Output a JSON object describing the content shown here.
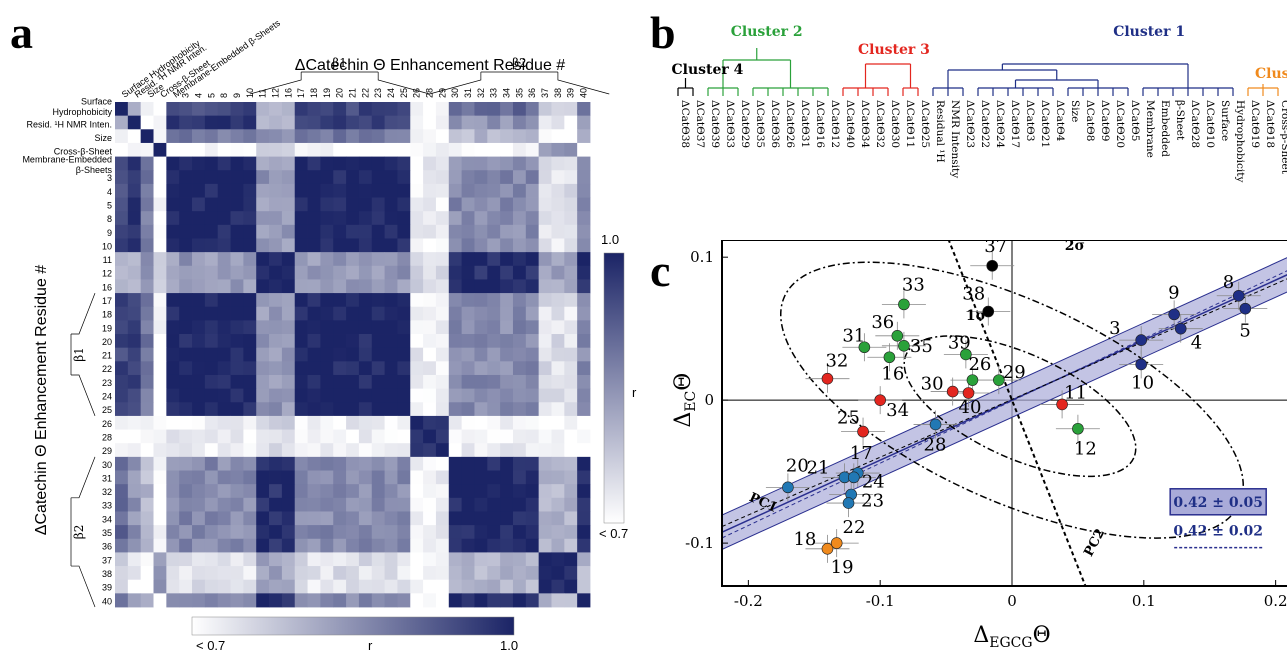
{
  "panels": {
    "a": {
      "letter": "a",
      "title": "ΔCatechin Θ Enhancement Residue #",
      "ylabel": "ΔCatechin Θ Enhancement Residue #",
      "beta1": "β1",
      "beta2": "β2",
      "row_labels": [
        "Surface Hydrophobicity",
        "Resid. ¹H NMR Inten.",
        "Size",
        "Cross-β-Sheet",
        "Membrane-Embedded β-Sheets",
        "3",
        "4",
        "5",
        "8",
        "9",
        "10",
        "11",
        "12",
        "16",
        "17",
        "18",
        "19",
        "20",
        "21",
        "22",
        "23",
        "24",
        "25",
        "26",
        "28",
        "29",
        "30",
        "31",
        "32",
        "33",
        "34",
        "35",
        "36",
        "37",
        "38",
        "39",
        "40"
      ],
      "col_labels": [
        "Surface Hydrophobicity",
        "Resid. ¹H NMR Inten.",
        "Size",
        "Cross-β-Sheet",
        "Membrane-Embedded β-Sheets",
        "3",
        "4",
        "5",
        "8",
        "9",
        "10",
        "11",
        "12",
        "16",
        "17",
        "18",
        "19",
        "20",
        "21",
        "22",
        "23",
        "24",
        "25",
        "26",
        "28",
        "29",
        "30",
        "31",
        "32",
        "33",
        "34",
        "35",
        "36",
        "37",
        "38",
        "39",
        "40"
      ],
      "left_labels": [
        "Surface",
        "Hydrophobicity",
        "Resid. ¹H NMR Inten.",
        "Size",
        "Cross-β-Sheet",
        "Membrane-Embedded",
        "β-Sheets"
      ],
      "colorbar_right": {
        "top": "1.0",
        "mid": "r",
        "bottom": "< 0.7"
      },
      "colorbar_bottom": {
        "left": "< 0.7",
        "mid": "r",
        "right": "1.0"
      },
      "colors": {
        "high": "#1b2466",
        "low": "#ffffff"
      }
    },
    "b": {
      "letter": "b",
      "clusters": [
        {
          "name": "Cluster 4",
          "color": "#000000"
        },
        {
          "name": "Cluster 2",
          "color": "#2aa13a"
        },
        {
          "name": "Cluster 3",
          "color": "#e3261f"
        },
        {
          "name": "Cluster 1",
          "color": "#1f2f86"
        },
        {
          "name": "Cluster",
          "color": "#f08a1d"
        }
      ],
      "leaves": [
        {
          "label": "ΔCatΘ38",
          "c": 0
        },
        {
          "label": "ΔCatΘ37",
          "c": 0
        },
        {
          "label": "ΔCatΘ39",
          "c": 1
        },
        {
          "label": "ΔCatΘ33",
          "c": 1
        },
        {
          "label": "ΔCatΘ29",
          "c": 1
        },
        {
          "label": "ΔCatΘ35",
          "c": 1
        },
        {
          "label": "ΔCatΘ36",
          "c": 1
        },
        {
          "label": "ΔCatΘ26",
          "c": 1
        },
        {
          "label": "ΔCatΘ31",
          "c": 1
        },
        {
          "label": "ΔCatΘ16",
          "c": 1
        },
        {
          "label": "ΔCatΘ12",
          "c": 1
        },
        {
          "label": "ΔCatΘ40",
          "c": 2
        },
        {
          "label": "ΔCatΘ34",
          "c": 2
        },
        {
          "label": "ΔCatΘ32",
          "c": 2
        },
        {
          "label": "ΔCatΘ30",
          "c": 2
        },
        {
          "label": "ΔCatΘ11",
          "c": 2
        },
        {
          "label": "ΔCatΘ25",
          "c": 2
        },
        {
          "label": "Residual ¹H",
          "c": 3
        },
        {
          "label": "NMR Intensity",
          "c": 3
        },
        {
          "label": "ΔCatΘ23",
          "c": 3
        },
        {
          "label": "ΔCatΘ22",
          "c": 3
        },
        {
          "label": "ΔCatΘ24",
          "c": 3
        },
        {
          "label": "ΔCatΘ17",
          "c": 3
        },
        {
          "label": "ΔCatΘ3",
          "c": 3
        },
        {
          "label": "ΔCatΘ21",
          "c": 3
        },
        {
          "label": "ΔCatΘ4",
          "c": 3
        },
        {
          "label": "Size",
          "c": 3
        },
        {
          "label": "ΔCatΘ8",
          "c": 3
        },
        {
          "label": "ΔCatΘ9",
          "c": 3
        },
        {
          "label": "ΔCatΘ20",
          "c": 3
        },
        {
          "label": "ΔCatΘ5",
          "c": 3
        },
        {
          "label": "Membrane",
          "c": 3
        },
        {
          "label": "Embedded",
          "c": 3
        },
        {
          "label": "β-Sheet",
          "c": 3
        },
        {
          "label": "ΔCatΘ28",
          "c": 3
        },
        {
          "label": "ΔCatΘ10",
          "c": 3
        },
        {
          "label": "Surface",
          "c": 3
        },
        {
          "label": "Hydrophobicity",
          "c": 3
        },
        {
          "label": "ΔCatΘ19",
          "c": 4
        },
        {
          "label": "ΔCatΘ18",
          "c": 4
        },
        {
          "label": "Cross-β-Sheet",
          "c": 4
        }
      ]
    },
    "c": {
      "letter": "c",
      "xlabel_main": "Δ",
      "xlabel_sub": "EGCG",
      "xlabel_tail": "Θ",
      "ylabel_main": "Δ",
      "ylabel_sub": "EC",
      "ylabel_tail": "Θ",
      "sigma1": "1σ",
      "sigma2": "2σ",
      "pc1": "PC1",
      "pc2": "PC2",
      "legend_box": "0.42 ± 0.05",
      "legend_line": "0.42 ± 0.02"
    }
  },
  "chart_data": [
    {
      "type": "heatmap",
      "title": "ΔCatechin Θ Enhancement Residue #",
      "ylabel": "ΔCatechin Θ Enhancement Residue #",
      "scale": {
        "min_label": "< 0.7",
        "max_label": "1.0",
        "variable": "r"
      },
      "groups": {
        "A": [
          "Surface Hydrophobicity"
        ],
        "B": [
          "Resid. ¹H NMR Inten."
        ],
        "C": [
          "Size"
        ],
        "D": [
          "Cross-β-Sheet"
        ],
        "E": [
          "Membrane-Embedded β-Sheets",
          "3",
          "4",
          "5",
          "8",
          "9",
          "10",
          "17",
          "18",
          "19",
          "20",
          "21",
          "22",
          "23",
          "24",
          "25"
        ],
        "F": [
          "11",
          "12",
          "16"
        ],
        "G": [
          "26",
          "28",
          "29"
        ],
        "H": [
          "30",
          "31",
          "32",
          "33",
          "34",
          "35",
          "36",
          "40"
        ],
        "I": [
          "37",
          "38",
          "39"
        ]
      },
      "group_correlation": {
        "A": {
          "A": 1.0,
          "B": 0.8,
          "C": 0.75,
          "D": 0.7,
          "E": 0.95,
          "F": 0.82,
          "G": 0.72,
          "H": 0.9,
          "I": 0.78
        },
        "B": {
          "A": 0.8,
          "B": 1.0,
          "C": 0.72,
          "D": 0.7,
          "E": 0.97,
          "F": 0.8,
          "G": 0.7,
          "H": 0.85,
          "I": 0.72
        },
        "C": {
          "A": 0.75,
          "B": 0.72,
          "C": 1.0,
          "D": 0.7,
          "E": 0.88,
          "F": 0.84,
          "G": 0.7,
          "H": 0.8,
          "I": 0.72
        },
        "D": {
          "A": 0.7,
          "B": 0.7,
          "C": 0.7,
          "D": 1.0,
          "E": 0.7,
          "F": 0.78,
          "G": 0.7,
          "H": 0.7,
          "I": 0.85
        },
        "E": {
          "A": 0.95,
          "B": 0.97,
          "C": 0.88,
          "D": 0.7,
          "E": 1.0,
          "F": 0.84,
          "G": 0.72,
          "H": 0.86,
          "I": 0.74
        },
        "F": {
          "A": 0.82,
          "B": 0.8,
          "C": 0.84,
          "D": 0.78,
          "E": 0.84,
          "F": 1.0,
          "G": 0.75,
          "H": 0.99,
          "I": 0.82
        },
        "G": {
          "A": 0.72,
          "B": 0.7,
          "C": 0.7,
          "D": 0.7,
          "E": 0.72,
          "F": 0.75,
          "G": 1.0,
          "H": 0.72,
          "I": 0.7
        },
        "H": {
          "A": 0.9,
          "B": 0.85,
          "C": 0.8,
          "D": 0.7,
          "E": 0.86,
          "F": 0.99,
          "G": 0.72,
          "H": 1.0,
          "I": 0.8
        },
        "I": {
          "A": 0.78,
          "B": 0.72,
          "C": 0.72,
          "D": 0.85,
          "E": 0.74,
          "F": 0.82,
          "G": 0.7,
          "H": 0.8,
          "I": 1.0
        }
      }
    },
    {
      "type": "scatter",
      "xlabel": "ΔEGCGΘ",
      "ylabel": "ΔECΘ",
      "xlim": [
        -0.22,
        0.22
      ],
      "ylim": [
        -0.13,
        0.14
      ],
      "xticks": [
        "-0.2",
        "-0.1",
        "0",
        "0.1",
        "0.2"
      ],
      "yticks": [
        "-0.1",
        "0",
        "0.1"
      ],
      "cluster_colors": {
        "1": "#1f2f86",
        "2": "#2aa13a",
        "3": "#e3261f",
        "4": "#000000",
        "5": "#f08a1d",
        "6": "#2178b4"
      },
      "points": [
        {
          "label": "37",
          "x": -0.015,
          "y": 0.094,
          "cluster": "4"
        },
        {
          "label": "38",
          "x": -0.018,
          "y": 0.062,
          "cluster": "4"
        },
        {
          "label": "33",
          "x": -0.082,
          "y": 0.067,
          "cluster": "2"
        },
        {
          "label": "36",
          "x": -0.087,
          "y": 0.045,
          "cluster": "2"
        },
        {
          "label": "35",
          "x": -0.082,
          "y": 0.038,
          "cluster": "2"
        },
        {
          "label": "31",
          "x": -0.112,
          "y": 0.037,
          "cluster": "2"
        },
        {
          "label": "16",
          "x": -0.093,
          "y": 0.03,
          "cluster": "2"
        },
        {
          "label": "39",
          "x": -0.035,
          "y": 0.032,
          "cluster": "2"
        },
        {
          "label": "26",
          "x": -0.03,
          "y": 0.014,
          "cluster": "2"
        },
        {
          "label": "29",
          "x": -0.01,
          "y": 0.014,
          "cluster": "2"
        },
        {
          "label": "12",
          "x": 0.05,
          "y": -0.02,
          "cluster": "2"
        },
        {
          "label": "32",
          "x": -0.14,
          "y": 0.015,
          "cluster": "3"
        },
        {
          "label": "30",
          "x": -0.045,
          "y": 0.006,
          "cluster": "3"
        },
        {
          "label": "40",
          "x": -0.033,
          "y": 0.005,
          "cluster": "3"
        },
        {
          "label": "34",
          "x": -0.1,
          "y": 0.0,
          "cluster": "3"
        },
        {
          "label": "25",
          "x": -0.113,
          "y": -0.022,
          "cluster": "3"
        },
        {
          "label": "11",
          "x": 0.038,
          "y": -0.003,
          "cluster": "3"
        },
        {
          "label": "9",
          "x": 0.123,
          "y": 0.06,
          "cluster": "1"
        },
        {
          "label": "8",
          "x": 0.172,
          "y": 0.073,
          "cluster": "1"
        },
        {
          "label": "5",
          "x": 0.177,
          "y": 0.064,
          "cluster": "1"
        },
        {
          "label": "3",
          "x": 0.098,
          "y": 0.042,
          "cluster": "1"
        },
        {
          "label": "4",
          "x": 0.128,
          "y": 0.05,
          "cluster": "1"
        },
        {
          "label": "10",
          "x": 0.098,
          "y": 0.025,
          "cluster": "1"
        },
        {
          "label": "28",
          "x": -0.058,
          "y": -0.017,
          "cluster": "6"
        },
        {
          "label": "20",
          "x": -0.17,
          "y": -0.061,
          "cluster": "6"
        },
        {
          "label": "21",
          "x": -0.127,
          "y": -0.054,
          "cluster": "6"
        },
        {
          "label": "17",
          "x": -0.117,
          "y": -0.051,
          "cluster": "6"
        },
        {
          "label": "24",
          "x": -0.12,
          "y": -0.054,
          "cluster": "6"
        },
        {
          "label": "23",
          "x": -0.122,
          "y": -0.066,
          "cluster": "6"
        },
        {
          "label": "22",
          "x": -0.124,
          "y": -0.072,
          "cluster": "6"
        },
        {
          "label": "18",
          "x": -0.14,
          "y": -0.104,
          "cluster": "5"
        },
        {
          "label": "19",
          "x": -0.133,
          "y": -0.1,
          "cluster": "5"
        }
      ],
      "fit_slope": 0.42,
      "annotations": [
        "0.42 ± 0.05",
        "0.42 ± 0.02",
        "1σ",
        "2σ",
        "PC1",
        "PC2"
      ]
    }
  ]
}
